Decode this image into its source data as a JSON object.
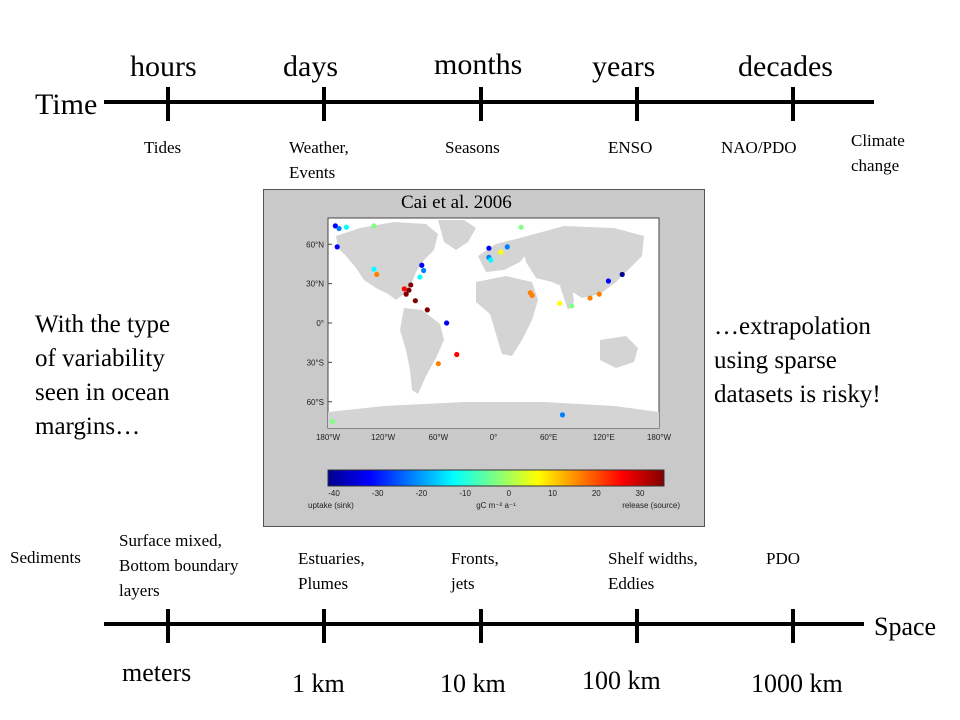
{
  "time_axis": {
    "label": "Time",
    "scales": [
      "hours",
      "days",
      "months",
      "years",
      "decades"
    ],
    "phenomena": [
      [
        "Tides"
      ],
      [
        "Weather,",
        "Events"
      ],
      [
        "Seasons"
      ],
      [
        "ENSO"
      ],
      [
        "NAO/PDO"
      ],
      [
        "Climate",
        "change"
      ]
    ]
  },
  "space_axis": {
    "label": "Space",
    "scales": [
      "meters",
      "1 km",
      "10 km",
      "100 km",
      "1000 km"
    ],
    "phenomena": [
      [
        "Sediments"
      ],
      [
        "Surface mixed,",
        "Bottom boundary",
        "layers"
      ],
      [
        "Estuaries,",
        "Plumes"
      ],
      [
        "Fronts,",
        "jets"
      ],
      [
        "Shelf widths,",
        "Eddies"
      ],
      [
        "PDO"
      ]
    ]
  },
  "left_text": [
    "With the type",
    "of variability",
    "seen in ocean",
    "margins…"
  ],
  "right_text": [
    "…extrapolation",
    "using sparse",
    "datasets is risky!"
  ],
  "map": {
    "credit": "Cai et al. 2006",
    "lat_labels": [
      "60°N",
      "30°N",
      "0°",
      "30°S",
      "60°S"
    ],
    "lon_labels": [
      "180°W",
      "120°W",
      "60°W",
      "0°",
      "60°E",
      "120°E",
      "180°W"
    ],
    "colorbar_ticks": [
      "-40",
      "-30",
      "-20",
      "-10",
      "0",
      "10",
      "20",
      "30"
    ],
    "colorbar_left_label": "uptake (sink)",
    "colorbar_unit": "gC m⁻² a⁻¹",
    "colorbar_right_label": "release (source)",
    "colorbar_colors": [
      "#00008f",
      "#0000ff",
      "#0080ff",
      "#00ffff",
      "#80ff80",
      "#ffff00",
      "#ff8000",
      "#ff0000",
      "#800000"
    ],
    "ocean_color": "#ffffff",
    "land_color": "#d4d4d4",
    "sites": [
      {
        "lon": -172,
        "lat": 74,
        "flux": -35
      },
      {
        "lon": -168,
        "lat": 72,
        "flux": -20
      },
      {
        "lon": -160,
        "lat": 73,
        "flux": -15
      },
      {
        "lon": -130,
        "lat": 74,
        "flux": -8
      },
      {
        "lon": -170,
        "lat": 58,
        "flux": -30
      },
      {
        "lon": -130,
        "lat": 41,
        "flux": -15
      },
      {
        "lon": -127,
        "lat": 37,
        "flux": 10
      },
      {
        "lon": -78,
        "lat": 44,
        "flux": -30
      },
      {
        "lon": -76,
        "lat": 40,
        "flux": -25
      },
      {
        "lon": -80,
        "lat": 35,
        "flux": -10
      },
      {
        "lon": -90,
        "lat": 29,
        "flux": 35
      },
      {
        "lon": -92,
        "lat": 25,
        "flux": 28
      },
      {
        "lon": -95,
        "lat": 22,
        "flux": 30
      },
      {
        "lon": -97,
        "lat": 26,
        "flux": 20
      },
      {
        "lon": -85,
        "lat": 17,
        "flux": 30
      },
      {
        "lon": -72,
        "lat": 10,
        "flux": 35
      },
      {
        "lon": -51,
        "lat": 0,
        "flux": -30
      },
      {
        "lon": -60,
        "lat": -31,
        "flux": 15
      },
      {
        "lon": -40,
        "lat": -24,
        "flux": 25
      },
      {
        "lon": -5,
        "lat": 57,
        "flux": -30
      },
      {
        "lon": -5,
        "lat": 50,
        "flux": -22
      },
      {
        "lon": -3,
        "lat": 48,
        "flux": -12
      },
      {
        "lon": 8,
        "lat": 54,
        "flux": 0
      },
      {
        "lon": 15,
        "lat": 58,
        "flux": -20
      },
      {
        "lon": 30,
        "lat": 73,
        "flux": -2
      },
      {
        "lon": 40,
        "lat": 23,
        "flux": 15
      },
      {
        "lon": 42,
        "lat": 21,
        "flux": 12
      },
      {
        "lon": 72,
        "lat": 15,
        "flux": 5
      },
      {
        "lon": 85,
        "lat": 13,
        "flux": -2
      },
      {
        "lon": 105,
        "lat": 19,
        "flux": 12
      },
      {
        "lon": 115,
        "lat": 22,
        "flux": 15
      },
      {
        "lon": 125,
        "lat": 32,
        "flux": -30
      },
      {
        "lon": 140,
        "lat": 37,
        "flux": -40
      },
      {
        "lon": 75,
        "lat": -70,
        "flux": -25
      },
      {
        "lon": -175,
        "lat": -75,
        "flux": -5
      }
    ]
  }
}
